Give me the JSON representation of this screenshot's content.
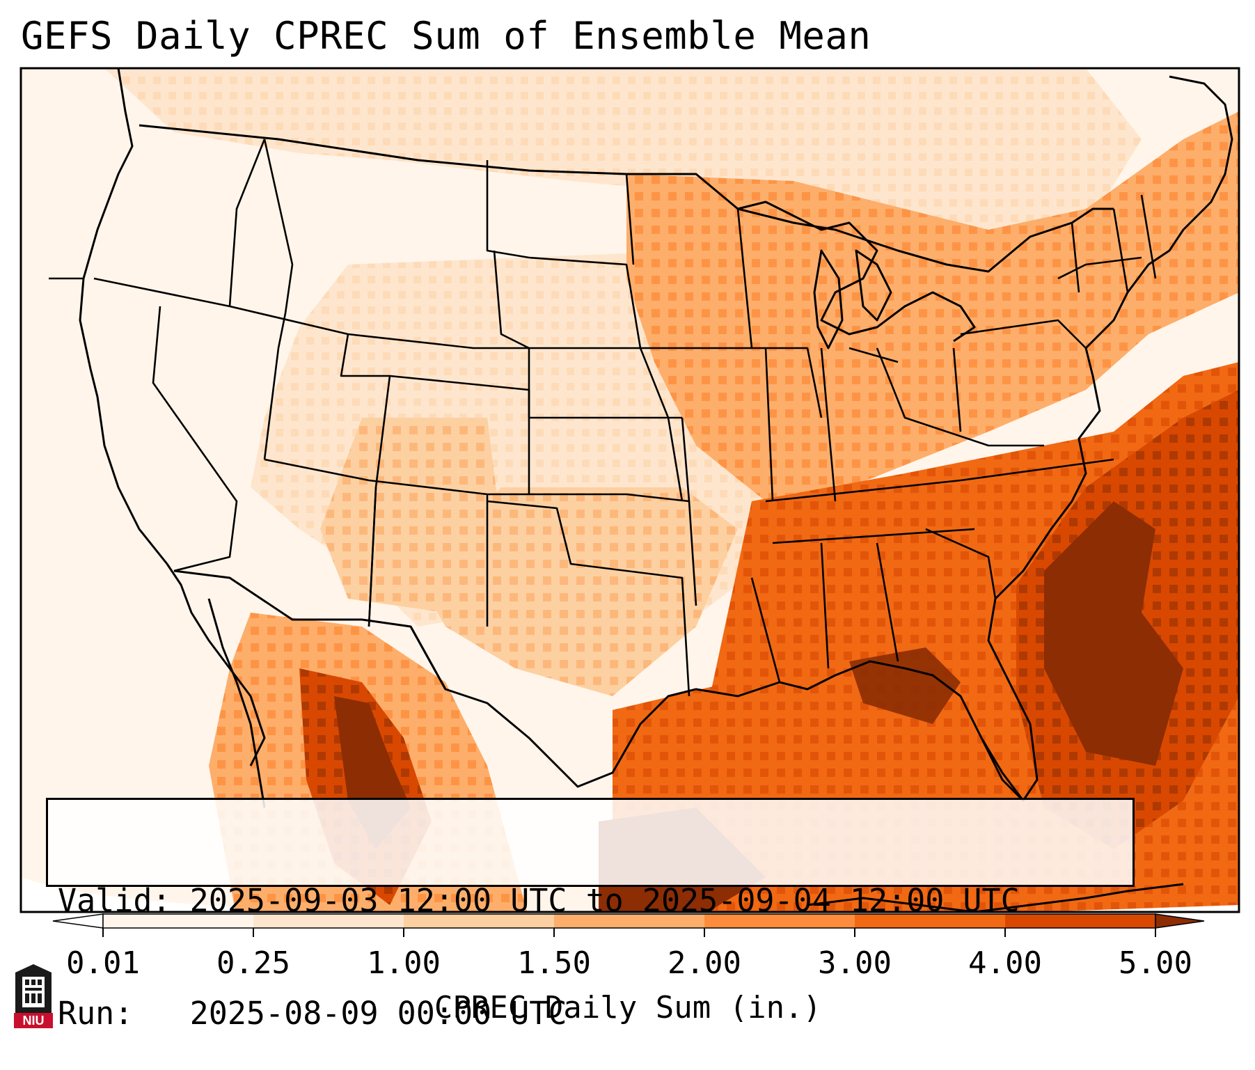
{
  "title": "GEFS Daily CPREC Sum of Ensemble Mean",
  "info": {
    "valid": "Valid: 2025-09-03 12:00 UTC to 2025-09-04 12:00 UTC",
    "run": "Run:   2025-08-09 00:00 UTC"
  },
  "colorbar": {
    "label": "CPREC Daily Sum (in.)",
    "ticks": [
      "0.01",
      "0.25",
      "1.00",
      "1.50",
      "2.00",
      "3.00",
      "4.00",
      "5.00"
    ],
    "colors": [
      "#fff5eb",
      "#fee6ce",
      "#fdd0a2",
      "#fdae6b",
      "#fd8d3c",
      "#f16913",
      "#d94801",
      "#8c2d04"
    ],
    "under_color": "#ffffff",
    "over_color": "#7f2704"
  },
  "logo": {
    "text": "NIU"
  },
  "map_regions": {
    "description_levels": "Precipitation levels shown by color bins; values are bin indices into colorbar.colors",
    "west_coast": 0,
    "northern_rockies": 1,
    "southwest_mexico": 5,
    "plains": 2,
    "midwest": 3,
    "great_lakes": 3,
    "ohio_valley": 3,
    "northeast": 3,
    "southeast": 4,
    "gulf_of_mexico": 5,
    "florida": 5,
    "western_atlantic": 6,
    "sierra_madre_max": 7,
    "atlantic_max": 7
  }
}
